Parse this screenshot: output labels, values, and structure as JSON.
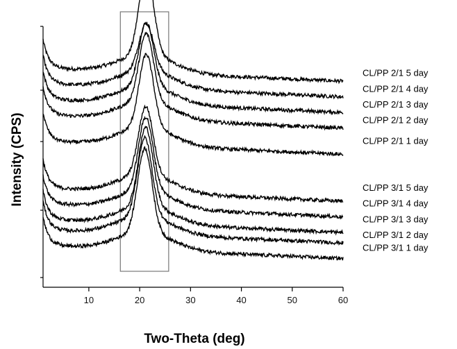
{
  "chart_data": {
    "type": "line",
    "title": "",
    "xlabel": "Two-Theta (deg)",
    "ylabel": "Intensity (CPS)",
    "xlim": [
      1,
      60
    ],
    "xticks": [
      10,
      20,
      30,
      40,
      50,
      60
    ],
    "y_tick_labels": "none",
    "grid": false,
    "highlight_region": {
      "x_start": 16.2,
      "x_end": 25.7
    },
    "series": [
      {
        "name": "CL/PP 2/1 5 day",
        "baseline": 8.2,
        "peak_x": 21.3,
        "peak_height": 1.6,
        "label_y": 8.1
      },
      {
        "name": "CL/PP 2/1 4 day",
        "baseline": 7.9,
        "peak_x": 21.3,
        "peak_height": 0.9,
        "label_y": 7.8
      },
      {
        "name": "CL/PP 2/1 3 day",
        "baseline": 7.6,
        "peak_x": 21.3,
        "peak_height": 1.2,
        "label_y": 7.5
      },
      {
        "name": "CL/PP 2/1 2 day",
        "baseline": 7.3,
        "peak_x": 21.3,
        "peak_height": 1.3,
        "label_y": 7.2
      },
      {
        "name": "CL/PP 2/1 1 day",
        "baseline": 6.8,
        "peak_x": 21.3,
        "peak_height": 1.4,
        "label_y": 6.8
      },
      {
        "name": "CL/PP 3/1 5 day",
        "baseline": 5.9,
        "peak_x": 21.2,
        "peak_height": 1.3,
        "label_y": 5.9
      },
      {
        "name": "CL/PP 3/1 4 day",
        "baseline": 5.6,
        "peak_x": 21.2,
        "peak_height": 1.4,
        "label_y": 5.6
      },
      {
        "name": "CL/PP 3/1 3 day",
        "baseline": 5.3,
        "peak_x": 21.2,
        "peak_height": 1.5,
        "label_y": 5.3
      },
      {
        "name": "CL/PP 3/1 2 day",
        "baseline": 5.1,
        "peak_x": 21.0,
        "peak_height": 1.5,
        "label_y": 5.0
      },
      {
        "name": "CL/PP 3/1 1 day",
        "baseline": 4.8,
        "peak_x": 21.0,
        "peak_height": 1.6,
        "label_y": 4.75
      }
    ]
  }
}
